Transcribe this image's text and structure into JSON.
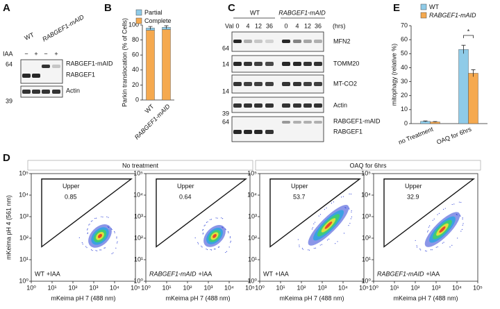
{
  "panels": {
    "A": {
      "label": "A",
      "conditions": [
        "WT",
        "RABGEF1-mAID"
      ],
      "treatment": "IAA",
      "signs": [
        "−",
        "+",
        "−",
        "+"
      ],
      "mw": [
        "64",
        "39"
      ],
      "bands": [
        "RABGEF1-mAID",
        "RABGEF1",
        "Actin"
      ]
    },
    "C": {
      "label": "C",
      "conditions": [
        "WT",
        "RABGEF1-mAID"
      ],
      "row_label": "Val",
      "times": [
        "0",
        "4",
        "12",
        "36",
        "0",
        "4",
        "12",
        "36"
      ],
      "unit": "(hrs)",
      "mw": [
        "64",
        "14",
        "14",
        "39",
        "64"
      ],
      "bands": [
        "MFN2",
        "TOMM20",
        "MT-CO2",
        "Actin",
        "RABGEF1-mAID",
        "RABGEF1"
      ]
    },
    "D": {
      "label": "D",
      "groups": [
        "No treatment",
        "OAQ for 6hrs"
      ]
    }
  },
  "chart_data": [
    {
      "type": "bar",
      "panel_label": "B",
      "stacked": true,
      "categories": [
        "WT",
        "RABGEF1-mAID"
      ],
      "series": [
        {
          "name": "Partial",
          "color": "#8fcbe8",
          "values": [
            3,
            3
          ],
          "errors": [
            2,
            2
          ]
        },
        {
          "name": "Complete",
          "color": "#f5a94f",
          "values": [
            93,
            94
          ]
        }
      ],
      "ylabel": "Parkin translocation (% of Cells)",
      "ylim": [
        0,
        100
      ],
      "yticks": [
        0,
        20,
        40,
        60,
        80,
        100
      ]
    },
    {
      "type": "bar",
      "panel_label": "E",
      "stacked": false,
      "categories": [
        "no Treatment",
        "OAQ for 6hrs"
      ],
      "series": [
        {
          "name": "WT",
          "color": "#8fcbe8",
          "values": [
            1.6,
            53
          ],
          "errors": [
            0.3,
            3
          ]
        },
        {
          "name": "RABGEF1-mAID",
          "color": "#f5a94f",
          "values": [
            1.2,
            36
          ],
          "errors": [
            0.3,
            2.5
          ]
        }
      ],
      "ylabel": "mitophagy (relative %)",
      "ylim": [
        0,
        70
      ],
      "yticks": [
        0,
        10,
        20,
        30,
        40,
        50,
        60,
        70
      ],
      "annotations": [
        "*"
      ]
    },
    {
      "type": "scatter",
      "xlabel": "mKeima pH 7 (488 nm)",
      "ylabel": "mKeima pH 4 (561 nm)",
      "xscale": "log",
      "yscale": "log",
      "xlim": [
        1,
        100000
      ],
      "ylim": [
        1,
        100000
      ],
      "xticks": [
        {
          "value": 1,
          "label": "10⁰"
        },
        {
          "value": 10,
          "label": "10¹"
        },
        {
          "value": 100,
          "label": "10²"
        },
        {
          "value": 1000,
          "label": "10³"
        },
        {
          "value": 10000,
          "label": "10⁴"
        },
        {
          "value": 100000,
          "label": "10⁵"
        }
      ],
      "yticks": [
        {
          "value": 1,
          "label": "10⁰"
        },
        {
          "value": 10,
          "label": "10¹"
        },
        {
          "value": 100,
          "label": "10²"
        },
        {
          "value": 1000,
          "label": "10³"
        },
        {
          "value": 10000,
          "label": "10⁴"
        },
        {
          "value": 100000,
          "label": "10⁵"
        }
      ],
      "gate_label": "Upper",
      "gate_value": 0.85,
      "genotype": "WT",
      "treatment": "+IAA"
    },
    {
      "type": "scatter",
      "xlabel": "mKeima pH 7 (488 nm)",
      "xscale": "log",
      "yscale": "log",
      "xlim": [
        1,
        100000
      ],
      "ylim": [
        1,
        100000
      ],
      "xticks": [
        {
          "value": 1,
          "label": "10⁰"
        },
        {
          "value": 10,
          "label": "10¹"
        },
        {
          "value": 100,
          "label": "10²"
        },
        {
          "value": 1000,
          "label": "10³"
        },
        {
          "value": 10000,
          "label": "10⁴"
        },
        {
          "value": 100000,
          "label": "10⁵"
        }
      ],
      "yticks": [
        {
          "value": 1,
          "label": "10⁰"
        },
        {
          "value": 10,
          "label": "10¹"
        },
        {
          "value": 100,
          "label": "10²"
        },
        {
          "value": 1000,
          "label": "10³"
        },
        {
          "value": 10000,
          "label": "10⁴"
        },
        {
          "value": 100000,
          "label": "10⁵"
        }
      ],
      "gate_label": "Upper",
      "gate_value": 0.64,
      "genotype": "RABGEF1-mAID",
      "treatment": "+IAA"
    },
    {
      "type": "scatter",
      "xlabel": "mKeima pH 7 (488 nm)",
      "xscale": "log",
      "yscale": "log",
      "xlim": [
        1,
        100000
      ],
      "ylim": [
        1,
        100000
      ],
      "xticks": [
        {
          "value": 1,
          "label": "10⁰"
        },
        {
          "value": 10,
          "label": "10¹"
        },
        {
          "value": 100,
          "label": "10²"
        },
        {
          "value": 1000,
          "label": "10³"
        },
        {
          "value": 10000,
          "label": "10⁴"
        },
        {
          "value": 100000,
          "label": "10⁵"
        }
      ],
      "yticks": [
        {
          "value": 1,
          "label": "10⁰"
        },
        {
          "value": 10,
          "label": "10¹"
        },
        {
          "value": 100,
          "label": "10²"
        },
        {
          "value": 1000,
          "label": "10³"
        },
        {
          "value": 10000,
          "label": "10⁴"
        },
        {
          "value": 100000,
          "label": "10⁵"
        }
      ],
      "gate_label": "Upper",
      "gate_value": 53.7,
      "genotype": "WT",
      "treatment": "+IAA"
    },
    {
      "type": "scatter",
      "xlabel": "mKeima pH 7 (488 nm)",
      "xscale": "log",
      "yscale": "log",
      "xlim": [
        1,
        100000
      ],
      "ylim": [
        1,
        100000
      ],
      "xticks": [
        {
          "value": 1,
          "label": "10⁰"
        },
        {
          "value": 10,
          "label": "10¹"
        },
        {
          "value": 100,
          "label": "10²"
        },
        {
          "value": 1000,
          "label": "10³"
        },
        {
          "value": 10000,
          "label": "10⁴"
        },
        {
          "value": 100000,
          "label": "10⁵"
        }
      ],
      "yticks": [
        {
          "value": 1,
          "label": "10⁰"
        },
        {
          "value": 10,
          "label": "10¹"
        },
        {
          "value": 100,
          "label": "10²"
        },
        {
          "value": 1000,
          "label": "10³"
        },
        {
          "value": 10000,
          "label": "10⁴"
        },
        {
          "value": 100000,
          "label": "10⁵"
        }
      ],
      "gate_label": "Upper",
      "gate_value": 32.9,
      "genotype": "RABGEF1-mAID",
      "treatment": "+IAA"
    }
  ]
}
